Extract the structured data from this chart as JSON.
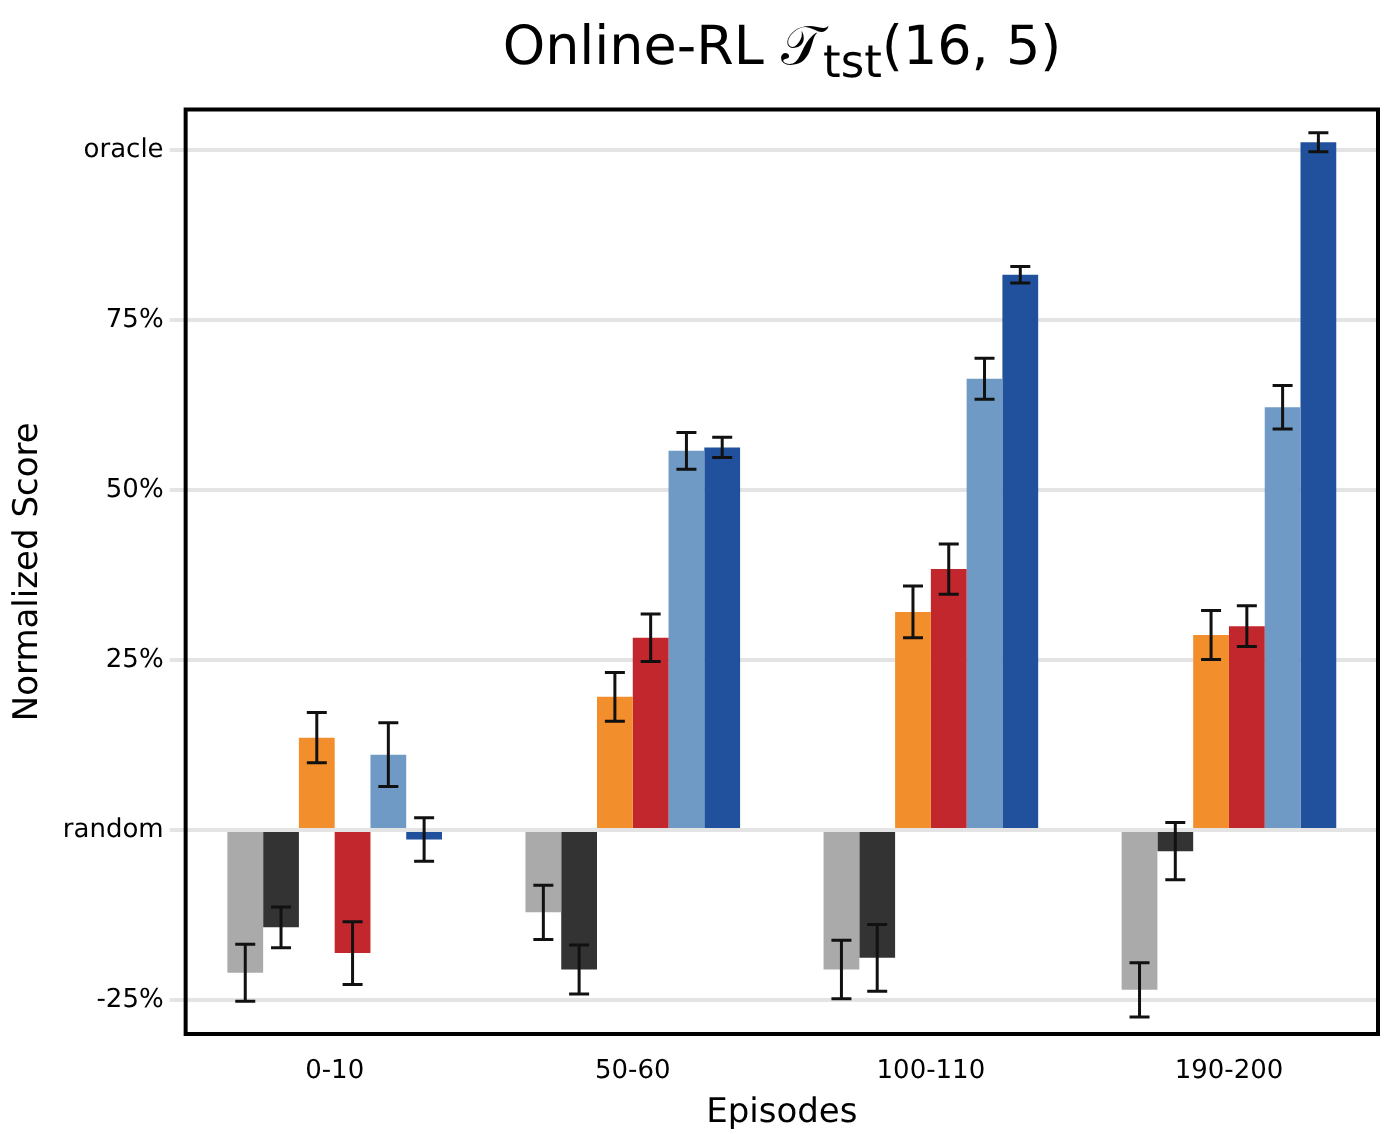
{
  "chart_data": {
    "type": "bar",
    "title": "Online-RL 𝒯$_{tst}$(16, 5)",
    "xlabel": "Episodes",
    "ylabel": "Normalized Score",
    "categories": [
      "0-10",
      "50-60",
      "100-110",
      "190-200"
    ],
    "series": [
      {
        "color": "#aaaaaa",
        "values": [
          -21,
          -12.1,
          -20.5,
          -23.5
        ],
        "errors": [
          4.2,
          4,
          4.3,
          4
        ]
      },
      {
        "color": "#333333",
        "values": [
          -14.3,
          -20.5,
          -18.8,
          -3.1
        ],
        "errors": [
          3,
          3.6,
          4.9,
          4.2
        ]
      },
      {
        "color": "#f28e2b",
        "values": [
          13.6,
          19.6,
          32.1,
          28.7
        ],
        "errors": [
          3.7,
          3.6,
          3.8,
          3.6
        ]
      },
      {
        "color": "#c1272d",
        "values": [
          -18.1,
          28.3,
          38.4,
          30
        ],
        "errors": [
          4.6,
          3.5,
          3.7,
          3
        ]
      },
      {
        "color": "#6f9ac6",
        "values": [
          11.1,
          55.8,
          66.4,
          62.2
        ],
        "errors": [
          4.7,
          2.7,
          3,
          3.2
        ]
      },
      {
        "color": "#21509c",
        "values": [
          -1.4,
          56.3,
          81.7,
          101.2
        ],
        "errors": [
          3.2,
          1.5,
          1.2,
          1.4
        ]
      }
    ],
    "ylim": [
      -30,
      106
    ],
    "yticks": [
      {
        "value": -25,
        "label": "-25%"
      },
      {
        "value": 0,
        "label": "random"
      },
      {
        "value": 25,
        "label": "25%"
      },
      {
        "value": 50,
        "label": "50%"
      },
      {
        "value": 75,
        "label": "75%"
      },
      {
        "value": 100,
        "label": "oracle"
      }
    ],
    "grid": "y",
    "legend": false
  }
}
